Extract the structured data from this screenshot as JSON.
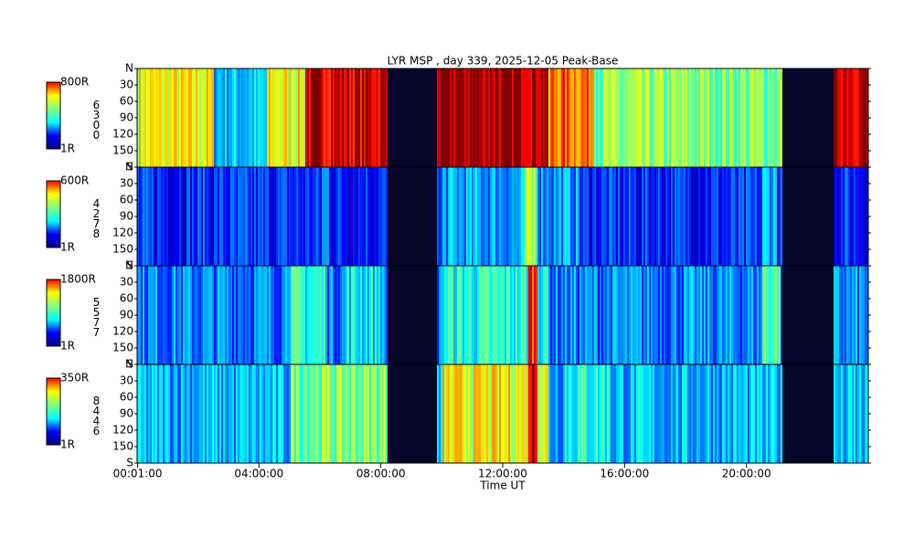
{
  "chart_data": {
    "type": "keogram",
    "title": "LYR MSP , day 339, 2025-12-05 Peak-Base",
    "x_label": "Time UT",
    "xlim": [
      0,
      1440
    ],
    "xticks": [
      {
        "value": 1,
        "label": "00:01:00"
      },
      {
        "value": 240,
        "label": "04:00:00"
      },
      {
        "value": 480,
        "label": "08:00:00"
      },
      {
        "value": 720,
        "label": "12:00:00"
      },
      {
        "value": 960,
        "label": "16:00:00"
      },
      {
        "value": 1200,
        "label": "20:00:00"
      }
    ],
    "panels": [
      {
        "wavelength": "6300",
        "max_label": "800R",
        "min_label": "1R",
        "ylim": [
          0,
          180
        ],
        "yticks": [
          {
            "value": 0,
            "label": "N"
          },
          30,
          60,
          90,
          120,
          150,
          {
            "value": 180,
            "label": "S"
          }
        ]
      },
      {
        "wavelength": "4278",
        "max_label": "600R",
        "min_label": "1R",
        "ylim": [
          0,
          180
        ],
        "yticks": [
          {
            "value": 0,
            "label": "N"
          },
          30,
          60,
          90,
          120,
          150,
          {
            "value": 180,
            "label": "S"
          }
        ]
      },
      {
        "wavelength": "5577",
        "max_label": "1800R",
        "min_label": "1R",
        "ylim": [
          0,
          180
        ],
        "yticks": [
          {
            "value": 0,
            "label": "N"
          },
          30,
          60,
          90,
          120,
          150,
          {
            "value": 180,
            "label": "S"
          }
        ]
      },
      {
        "wavelength": "8446",
        "max_label": "350R",
        "min_label": "1R",
        "ylim": [
          0,
          180
        ],
        "yticks": [
          {
            "value": 0,
            "label": "N"
          },
          30,
          60,
          90,
          120,
          150,
          {
            "value": 180,
            "label": "S"
          }
        ]
      }
    ]
  }
}
